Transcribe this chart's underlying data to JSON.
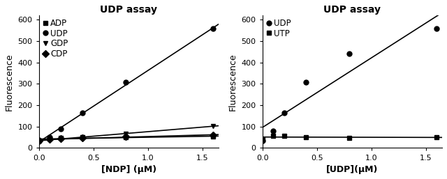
{
  "left": {
    "title": "UDP assay",
    "xlabel": "[NDP] (μM)",
    "ylabel": "Fluorescence",
    "xlim": [
      0.0,
      1.65
    ],
    "ylim": [
      0,
      620
    ],
    "xticks": [
      0.0,
      0.5,
      1.0,
      1.5
    ],
    "yticks": [
      0,
      100,
      200,
      300,
      400,
      500,
      600
    ],
    "series": [
      {
        "label": "ADP",
        "marker": "s",
        "x": [
          0.0,
          0.1,
          0.2,
          0.4,
          0.8,
          1.6
        ],
        "y": [
          35,
          43,
          46,
          50,
          50,
          53
        ]
      },
      {
        "label": "UDP",
        "marker": "o",
        "x": [
          0.0,
          0.1,
          0.2,
          0.4,
          0.8,
          1.6
        ],
        "y": [
          35,
          50,
          90,
          165,
          307,
          557
        ]
      },
      {
        "label": "GDP",
        "marker": "v",
        "x": [
          0.0,
          0.1,
          0.2,
          0.4,
          0.8,
          1.6
        ],
        "y": [
          35,
          38,
          42,
          50,
          68,
          102
        ]
      },
      {
        "label": "CDP",
        "marker": "D",
        "x": [
          0.0,
          0.1,
          0.2,
          0.4,
          0.8,
          1.6
        ],
        "y": [
          35,
          40,
          43,
          48,
          53,
          60
        ]
      }
    ]
  },
  "right": {
    "title": "UDP assay",
    "xlabel": "[UDP](μM)",
    "ylabel": "Fluorescence",
    "xlim": [
      0.0,
      1.65
    ],
    "ylim": [
      0,
      620
    ],
    "xticks": [
      0.0,
      0.5,
      1.0,
      1.5
    ],
    "yticks": [
      0,
      100,
      200,
      300,
      400,
      500,
      600
    ],
    "series": [
      {
        "label": "UDP",
        "marker": "o",
        "x": [
          0.0,
          0.1,
          0.2,
          0.4,
          0.8,
          1.6
        ],
        "y": [
          35,
          80,
          165,
          307,
          440,
          557
        ]
      },
      {
        "label": "UTP",
        "marker": "s",
        "x": [
          0.0,
          0.1,
          0.2,
          0.4,
          0.8,
          1.6
        ],
        "y": [
          42,
          57,
          58,
          50,
          47,
          50
        ]
      }
    ]
  },
  "color": "#000000",
  "linewidth": 1.2,
  "markersize": 5,
  "title_fontsize": 10,
  "label_fontsize": 9,
  "tick_fontsize": 8,
  "legend_fontsize": 8.5
}
